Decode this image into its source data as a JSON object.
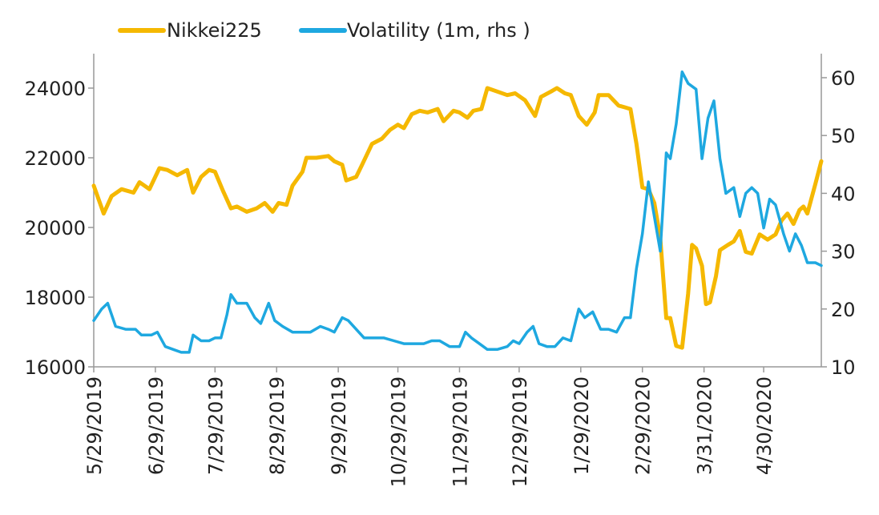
{
  "chart_data": {
    "type": "line",
    "title": "",
    "legend_placement": "top",
    "grid": false,
    "x_type": "date",
    "x_range": [
      "2019-05-29",
      "2020-05-29"
    ],
    "x_tick_labels": [
      "5/29/2019",
      "6/29/2019",
      "7/29/2019",
      "8/29/2019",
      "9/29/2019",
      "10/29/2019",
      "11/29/2019",
      "12/29/2019",
      "1/29/2020",
      "2/29/2020",
      "3/31/2020",
      "4/30/2020"
    ],
    "x_ticks": [
      "2019-05-29",
      "2019-06-29",
      "2019-07-29",
      "2019-08-29",
      "2019-09-29",
      "2019-10-29",
      "2019-11-29",
      "2019-12-29",
      "2020-01-29",
      "2020-02-29",
      "2020-03-31",
      "2020-04-30"
    ],
    "y_left": {
      "range": [
        16000,
        25500
      ],
      "ticks": [
        16000,
        18000,
        20000,
        22000,
        24000
      ],
      "tick_labels": [
        "16000",
        "18000",
        "20000",
        "22000",
        "24000"
      ]
    },
    "y_right": {
      "range": [
        10,
        65
      ],
      "ticks": [
        10,
        20,
        30,
        40,
        50,
        60
      ],
      "tick_labels": [
        "10",
        "20",
        "30",
        "40",
        "50",
        "60"
      ]
    },
    "series": [
      {
        "name": "Nikkei225",
        "axis": "left",
        "color": "#F5B800",
        "points": [
          [
            "2019-05-29",
            21200
          ],
          [
            "2019-06-03",
            20400
          ],
          [
            "2019-06-07",
            20900
          ],
          [
            "2019-06-12",
            21100
          ],
          [
            "2019-06-18",
            21000
          ],
          [
            "2019-06-21",
            21300
          ],
          [
            "2019-06-26",
            21100
          ],
          [
            "2019-07-01",
            21700
          ],
          [
            "2019-07-05",
            21650
          ],
          [
            "2019-07-10",
            21500
          ],
          [
            "2019-07-15",
            21650
          ],
          [
            "2019-07-18",
            21000
          ],
          [
            "2019-07-22",
            21450
          ],
          [
            "2019-07-26",
            21650
          ],
          [
            "2019-07-29",
            21600
          ],
          [
            "2019-08-02",
            21050
          ],
          [
            "2019-08-06",
            20550
          ],
          [
            "2019-08-09",
            20600
          ],
          [
            "2019-08-14",
            20450
          ],
          [
            "2019-08-19",
            20550
          ],
          [
            "2019-08-23",
            20700
          ],
          [
            "2019-08-27",
            20450
          ],
          [
            "2019-08-30",
            20700
          ],
          [
            "2019-09-03",
            20650
          ],
          [
            "2019-09-06",
            21200
          ],
          [
            "2019-09-11",
            21600
          ],
          [
            "2019-09-13",
            22000
          ],
          [
            "2019-09-18",
            22000
          ],
          [
            "2019-09-24",
            22050
          ],
          [
            "2019-09-27",
            21900
          ],
          [
            "2019-10-01",
            21800
          ],
          [
            "2019-10-03",
            21350
          ],
          [
            "2019-10-08",
            21450
          ],
          [
            "2019-10-11",
            21800
          ],
          [
            "2019-10-16",
            22400
          ],
          [
            "2019-10-21",
            22550
          ],
          [
            "2019-10-25",
            22800
          ],
          [
            "2019-10-29",
            22950
          ],
          [
            "2019-11-01",
            22850
          ],
          [
            "2019-11-05",
            23250
          ],
          [
            "2019-11-09",
            23350
          ],
          [
            "2019-11-13",
            23300
          ],
          [
            "2019-11-18",
            23400
          ],
          [
            "2019-11-21",
            23050
          ],
          [
            "2019-11-26",
            23350
          ],
          [
            "2019-11-29",
            23300
          ],
          [
            "2019-12-03",
            23150
          ],
          [
            "2019-12-06",
            23350
          ],
          [
            "2019-12-10",
            23400
          ],
          [
            "2019-12-13",
            24000
          ],
          [
            "2019-12-18",
            23900
          ],
          [
            "2019-12-23",
            23800
          ],
          [
            "2019-12-27",
            23850
          ],
          [
            "2020-01-01",
            23650
          ],
          [
            "2020-01-06",
            23200
          ],
          [
            "2020-01-09",
            23750
          ],
          [
            "2020-01-14",
            23900
          ],
          [
            "2020-01-17",
            24000
          ],
          [
            "2020-01-21",
            23850
          ],
          [
            "2020-01-24",
            23800
          ],
          [
            "2020-01-28",
            23200
          ],
          [
            "2020-02-01",
            22950
          ],
          [
            "2020-02-05",
            23300
          ],
          [
            "2020-02-07",
            23800
          ],
          [
            "2020-02-12",
            23800
          ],
          [
            "2020-02-17",
            23500
          ],
          [
            "2020-02-20",
            23450
          ],
          [
            "2020-02-23",
            23400
          ],
          [
            "2020-02-26",
            22400
          ],
          [
            "2020-02-29",
            21150
          ],
          [
            "2020-03-03",
            21100
          ],
          [
            "2020-03-06",
            20700
          ],
          [
            "2020-03-09",
            19700
          ],
          [
            "2020-03-12",
            17400
          ],
          [
            "2020-03-14",
            17400
          ],
          [
            "2020-03-17",
            16600
          ],
          [
            "2020-03-20",
            16550
          ],
          [
            "2020-03-23",
            18100
          ],
          [
            "2020-03-25",
            19500
          ],
          [
            "2020-03-27",
            19400
          ],
          [
            "2020-03-30",
            18900
          ],
          [
            "2020-04-01",
            17800
          ],
          [
            "2020-04-03",
            17850
          ],
          [
            "2020-04-06",
            18600
          ],
          [
            "2020-04-08",
            19350
          ],
          [
            "2020-04-12",
            19500
          ],
          [
            "2020-04-15",
            19600
          ],
          [
            "2020-04-18",
            19900
          ],
          [
            "2020-04-21",
            19300
          ],
          [
            "2020-04-24",
            19250
          ],
          [
            "2020-04-28",
            19800
          ],
          [
            "2020-05-02",
            19650
          ],
          [
            "2020-05-06",
            19800
          ],
          [
            "2020-05-09",
            20200
          ],
          [
            "2020-05-12",
            20400
          ],
          [
            "2020-05-15",
            20100
          ],
          [
            "2020-05-18",
            20500
          ],
          [
            "2020-05-20",
            20600
          ],
          [
            "2020-05-22",
            20400
          ],
          [
            "2020-05-26",
            21250
          ],
          [
            "2020-05-29",
            21900
          ]
        ]
      },
      {
        "name": "Volatility (1m, rhs )",
        "axis": "right",
        "color": "#1EA8E0",
        "points": [
          [
            "2019-05-29",
            18
          ],
          [
            "2019-06-02",
            20
          ],
          [
            "2019-06-05",
            21
          ],
          [
            "2019-06-09",
            17
          ],
          [
            "2019-06-14",
            16.5
          ],
          [
            "2019-06-19",
            16.5
          ],
          [
            "2019-06-22",
            15.5
          ],
          [
            "2019-06-27",
            15.5
          ],
          [
            "2019-06-30",
            16
          ],
          [
            "2019-07-04",
            13.5
          ],
          [
            "2019-07-08",
            13
          ],
          [
            "2019-07-12",
            12.5
          ],
          [
            "2019-07-16",
            12.5
          ],
          [
            "2019-07-18",
            15.5
          ],
          [
            "2019-07-22",
            14.5
          ],
          [
            "2019-07-26",
            14.5
          ],
          [
            "2019-07-29",
            15
          ],
          [
            "2019-08-01",
            15
          ],
          [
            "2019-08-04",
            19
          ],
          [
            "2019-08-06",
            22.5
          ],
          [
            "2019-08-09",
            21
          ],
          [
            "2019-08-14",
            21
          ],
          [
            "2019-08-18",
            18.5
          ],
          [
            "2019-08-21",
            17.5
          ],
          [
            "2019-08-25",
            21
          ],
          [
            "2019-08-28",
            18
          ],
          [
            "2019-09-01",
            17
          ],
          [
            "2019-09-06",
            16
          ],
          [
            "2019-09-10",
            16
          ],
          [
            "2019-09-15",
            16
          ],
          [
            "2019-09-20",
            17
          ],
          [
            "2019-09-24",
            16.5
          ],
          [
            "2019-09-27",
            16
          ],
          [
            "2019-10-01",
            18.5
          ],
          [
            "2019-10-04",
            18
          ],
          [
            "2019-10-08",
            16.5
          ],
          [
            "2019-10-12",
            15
          ],
          [
            "2019-10-17",
            15
          ],
          [
            "2019-10-22",
            15
          ],
          [
            "2019-10-27",
            14.5
          ],
          [
            "2019-11-01",
            14
          ],
          [
            "2019-11-06",
            14
          ],
          [
            "2019-11-11",
            14
          ],
          [
            "2019-11-15",
            14.5
          ],
          [
            "2019-11-19",
            14.5
          ],
          [
            "2019-11-24",
            13.5
          ],
          [
            "2019-11-29",
            13.5
          ],
          [
            "2019-12-02",
            16
          ],
          [
            "2019-12-05",
            15
          ],
          [
            "2019-12-09",
            14
          ],
          [
            "2019-12-13",
            13
          ],
          [
            "2019-12-18",
            13
          ],
          [
            "2019-12-23",
            13.5
          ],
          [
            "2019-12-26",
            14.5
          ],
          [
            "2019-12-29",
            14
          ],
          [
            "2020-01-02",
            16
          ],
          [
            "2020-01-05",
            17
          ],
          [
            "2020-01-08",
            14
          ],
          [
            "2020-01-12",
            13.5
          ],
          [
            "2020-01-16",
            13.5
          ],
          [
            "2020-01-20",
            15
          ],
          [
            "2020-01-24",
            14.5
          ],
          [
            "2020-01-28",
            20
          ],
          [
            "2020-01-31",
            18.5
          ],
          [
            "2020-02-04",
            19.5
          ],
          [
            "2020-02-08",
            16.5
          ],
          [
            "2020-02-12",
            16.5
          ],
          [
            "2020-02-16",
            16
          ],
          [
            "2020-02-20",
            18.5
          ],
          [
            "2020-02-23",
            18.5
          ],
          [
            "2020-02-26",
            27
          ],
          [
            "2020-02-29",
            33
          ],
          [
            "2020-03-03",
            42
          ],
          [
            "2020-03-06",
            36
          ],
          [
            "2020-03-09",
            30
          ],
          [
            "2020-03-12",
            47
          ],
          [
            "2020-03-14",
            46
          ],
          [
            "2020-03-17",
            52
          ],
          [
            "2020-03-20",
            61
          ],
          [
            "2020-03-23",
            59
          ],
          [
            "2020-03-27",
            58
          ],
          [
            "2020-03-30",
            46
          ],
          [
            "2020-04-02",
            53
          ],
          [
            "2020-04-05",
            56
          ],
          [
            "2020-04-08",
            46
          ],
          [
            "2020-04-11",
            40
          ],
          [
            "2020-04-15",
            41
          ],
          [
            "2020-04-18",
            36
          ],
          [
            "2020-04-21",
            40
          ],
          [
            "2020-04-24",
            41
          ],
          [
            "2020-04-27",
            40
          ],
          [
            "2020-04-30",
            34
          ],
          [
            "2020-05-03",
            39
          ],
          [
            "2020-05-06",
            38
          ],
          [
            "2020-05-10",
            33
          ],
          [
            "2020-05-13",
            30
          ],
          [
            "2020-05-16",
            33
          ],
          [
            "2020-05-19",
            31
          ],
          [
            "2020-05-22",
            28
          ],
          [
            "2020-05-26",
            28
          ],
          [
            "2020-05-29",
            27.5
          ]
        ]
      }
    ]
  }
}
